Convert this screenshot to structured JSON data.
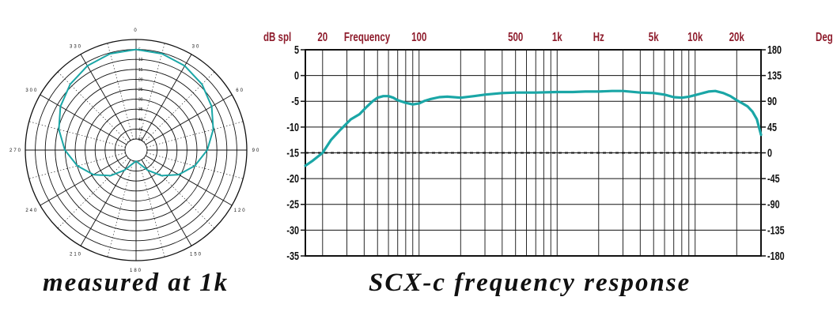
{
  "theme": {
    "curve_color": "#1aa6a6",
    "label_red": "#8e1c2c",
    "ink": "#111111"
  },
  "captions": {
    "polar": "measured at 1k",
    "frequency": "SCX-c frequency response"
  },
  "chart_data": [
    {
      "type": "polar",
      "angle_labels": [
        "0",
        "30",
        "60",
        "90",
        "120",
        "150",
        "180",
        "210",
        "240",
        "270",
        "300",
        "330"
      ],
      "ring_labels": [
        "5",
        "10",
        "15",
        "20",
        "25",
        "30",
        "35",
        "40",
        "45",
        "50"
      ],
      "series": [
        {
          "values_db_by_angle": [
            [
              0,
              0
            ],
            [
              15,
              -0.4
            ],
            [
              30,
              -1.5
            ],
            [
              45,
              -3.4
            ],
            [
              60,
              -6.0
            ],
            [
              75,
              -9.3
            ],
            [
              90,
              -13.2
            ],
            [
              105,
              -17.8
            ],
            [
              120,
              -23.0
            ],
            [
              135,
              -28.8
            ],
            [
              150,
              -34.5
            ],
            [
              165,
              -38.5
            ],
            [
              180,
              -40
            ],
            [
              195,
              -38.5
            ],
            [
              210,
              -34.5
            ],
            [
              225,
              -28.8
            ],
            [
              240,
              -23.0
            ],
            [
              255,
              -17.8
            ],
            [
              270,
              -13.2
            ],
            [
              285,
              -9.3
            ],
            [
              300,
              -6.0
            ],
            [
              315,
              -3.4
            ],
            [
              330,
              -1.5
            ],
            [
              345,
              -0.4
            ]
          ]
        }
      ]
    },
    {
      "type": "line",
      "x_scale": "log",
      "xlim": [
        15,
        30000
      ],
      "ylim": [
        -35,
        5
      ],
      "y_ticks": [
        "5",
        "0",
        "-5",
        "-10",
        "-15",
        "-20",
        "-25",
        "-30",
        "-35"
      ],
      "y2_ticks": [
        "180",
        "135",
        "90",
        "45",
        "0",
        "-45",
        "-90",
        "-135",
        "-180"
      ],
      "top_labels": {
        "left": "dB spl",
        "right": "Deg",
        "items": [
          {
            "text": "20",
            "freq": 20
          },
          {
            "text": "Frequency",
            "freq": 42
          },
          {
            "text": "100",
            "freq": 100
          },
          {
            "text": "500",
            "freq": 500
          },
          {
            "text": "1k",
            "freq": 1000
          },
          {
            "text": "Hz",
            "freq": 2000
          },
          {
            "text": "5k",
            "freq": 5000
          },
          {
            "text": "10k",
            "freq": 10000
          },
          {
            "text": "20k",
            "freq": 20000
          }
        ]
      },
      "reference_line_db": -15,
      "series": [
        {
          "x": [
            15,
            17,
            20,
            23,
            27,
            32,
            37,
            42,
            46,
            50,
            55,
            60,
            65,
            70,
            80,
            90,
            100,
            110,
            120,
            140,
            160,
            200,
            250,
            300,
            400,
            500,
            700,
            1000,
            1300,
            1600,
            2000,
            2500,
            3000,
            4000,
            5000,
            6000,
            7000,
            8000,
            9000,
            10000,
            11000,
            12500,
            14000,
            16000,
            18000,
            20000,
            22000,
            24000,
            26000,
            28000,
            30000
          ],
          "y": [
            -17.5,
            -16.5,
            -15,
            -12.5,
            -10.5,
            -8.5,
            -7.5,
            -6,
            -5,
            -4.3,
            -4.0,
            -4.0,
            -4.3,
            -4.8,
            -5.3,
            -5.6,
            -5.4,
            -4.9,
            -4.6,
            -4.2,
            -4.1,
            -4.3,
            -4.0,
            -3.7,
            -3.4,
            -3.3,
            -3.3,
            -3.2,
            -3.2,
            -3.1,
            -3.1,
            -3.0,
            -3.0,
            -3.3,
            -3.4,
            -3.7,
            -4.2,
            -4.3,
            -4.1,
            -3.8,
            -3.5,
            -3.1,
            -3.0,
            -3.4,
            -4.0,
            -4.8,
            -5.4,
            -6.0,
            -7.0,
            -8.5,
            -11.5
          ]
        }
      ]
    }
  ]
}
